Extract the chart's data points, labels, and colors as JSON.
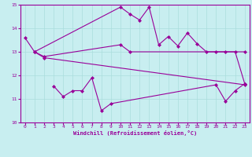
{
  "background_color": "#c8eef0",
  "grid_color": "#aadddd",
  "line_color": "#990099",
  "marker_color": "#990099",
  "xlabel": "Windchill (Refroidissement éolien,°C)",
  "xlim": [
    -0.5,
    23.5
  ],
  "ylim": [
    10,
    15
  ],
  "yticks": [
    10,
    11,
    12,
    13,
    14,
    15
  ],
  "xticks": [
    0,
    1,
    2,
    3,
    4,
    5,
    6,
    7,
    8,
    9,
    10,
    11,
    12,
    13,
    14,
    15,
    16,
    17,
    18,
    19,
    20,
    21,
    22,
    23
  ],
  "series1_x": [
    0,
    1,
    10,
    11,
    12,
    13,
    14,
    15,
    16,
    17,
    18,
    19,
    20,
    21,
    22,
    23
  ],
  "series1_y": [
    13.6,
    13.0,
    14.9,
    14.6,
    14.35,
    14.9,
    13.3,
    13.65,
    13.25,
    13.8,
    13.35,
    13.0,
    13.0,
    13.0,
    13.0,
    11.65
  ],
  "series2_x": [
    1,
    2,
    10,
    11,
    23
  ],
  "series2_y": [
    13.0,
    12.8,
    13.3,
    13.0,
    13.0
  ],
  "series3_x": [
    1,
    2,
    23
  ],
  "series3_y": [
    13.0,
    12.75,
    11.6
  ],
  "series4_x": [
    3,
    4,
    5,
    6,
    7,
    8,
    9,
    20,
    21,
    22,
    23
  ],
  "series4_y": [
    11.55,
    11.1,
    11.35,
    11.35,
    11.9,
    10.5,
    10.8,
    11.6,
    10.9,
    11.35,
    11.65
  ]
}
